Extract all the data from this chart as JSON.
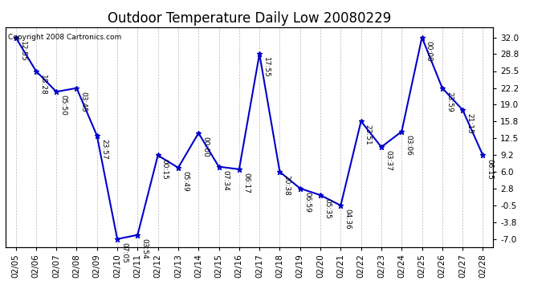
{
  "title": "Outdoor Temperature Daily Low 20080229",
  "copyright": "Copyright 2008 Cartronics.com",
  "dates": [
    "02/05",
    "02/06",
    "02/07",
    "02/08",
    "02/09",
    "02/10",
    "02/11",
    "02/12",
    "02/13",
    "02/14",
    "02/15",
    "02/16",
    "02/17",
    "02/18",
    "02/19",
    "02/20",
    "02/21",
    "02/22",
    "02/23",
    "02/24",
    "02/25",
    "02/26",
    "02/27",
    "02/28"
  ],
  "values": [
    32.0,
    25.5,
    21.5,
    22.2,
    13.0,
    -7.0,
    -6.2,
    9.2,
    6.8,
    13.5,
    7.0,
    6.5,
    28.8,
    6.0,
    2.8,
    1.5,
    -0.5,
    15.8,
    10.8,
    13.8,
    32.0,
    22.2,
    18.0,
    9.2
  ],
  "labels": [
    "12:55",
    "18:28",
    "05:50",
    "03:45",
    "23:57",
    "07:05",
    "03:54",
    "00:15",
    "05:49",
    "00:00",
    "07:34",
    "06:17",
    "17:55",
    "20:38",
    "06:59",
    "05:35",
    "04:36",
    "23:51",
    "03:37",
    "03:06",
    "00:00",
    "23:59",
    "21:15",
    "06:15"
  ],
  "line_color": "#0000CC",
  "marker_color": "#0000CC",
  "bg_color": "#ffffff",
  "grid_color": "#bbbbbb",
  "yticks": [
    -7.0,
    -3.8,
    -0.5,
    2.8,
    6.0,
    9.2,
    12.5,
    15.8,
    19.0,
    22.2,
    25.5,
    28.8,
    32.0
  ],
  "ylim": [
    -8.5,
    34.0
  ],
  "title_fontsize": 12,
  "label_fontsize": 6.5,
  "copyright_fontsize": 6.5,
  "tick_fontsize": 7.5
}
